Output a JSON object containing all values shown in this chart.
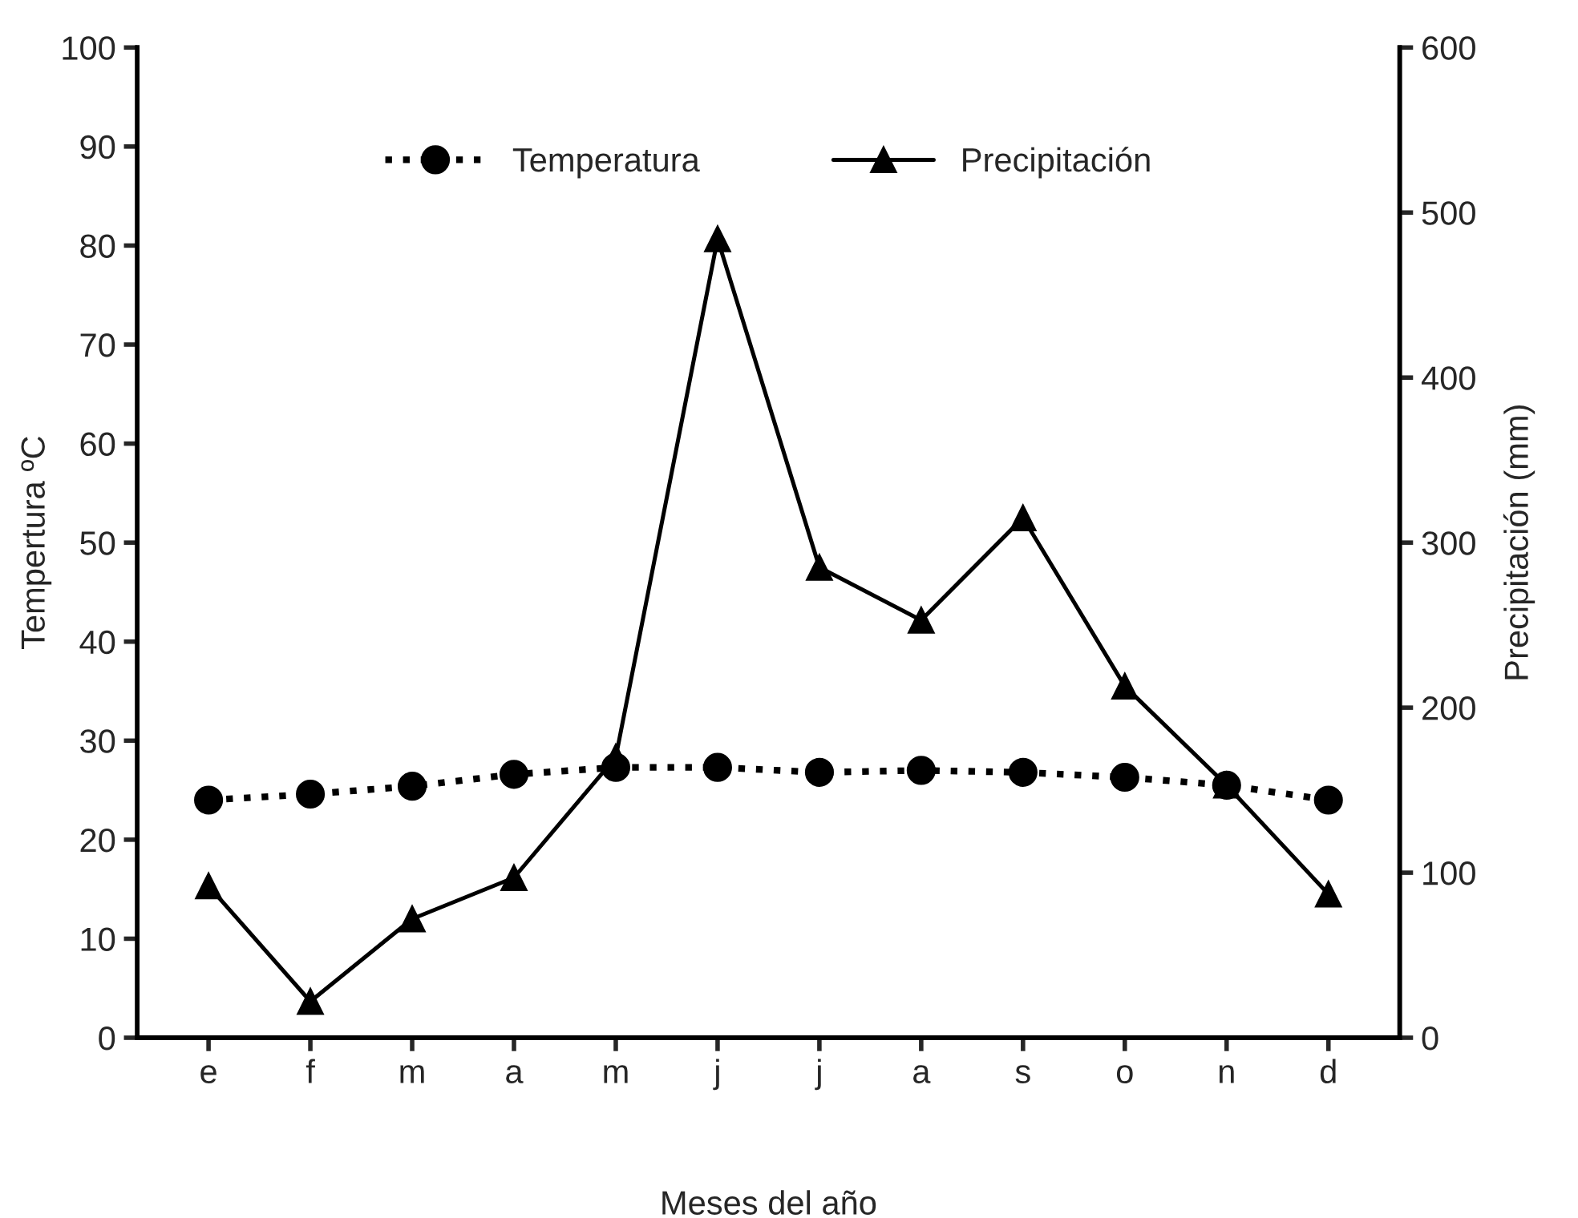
{
  "chart_data": {
    "type": "line",
    "xlabel": "Meses del año",
    "ylabel": "Tempertura ºC",
    "y2label": "Precipitación (mm)",
    "categories": [
      "e",
      "f",
      "m",
      "a",
      "m",
      "j",
      "j",
      "a",
      "s",
      "o",
      "n",
      "d"
    ],
    "series": [
      {
        "name": "Temperatura",
        "color": "#000000",
        "marker": "circle",
        "line_style": "dotted",
        "values": [
          24.0,
          24.6,
          25.4,
          26.6,
          27.3,
          27.3,
          26.8,
          27.0,
          26.8,
          26.3,
          25.5,
          24.0
        ]
      },
      {
        "name": "Precipitación",
        "color": "#000000",
        "marker": "triangle",
        "line_style": "solid",
        "axis": "y2",
        "values": [
          92,
          22,
          72,
          97,
          170,
          484,
          285,
          253,
          315,
          213,
          153,
          87
        ]
      }
    ],
    "ylim": [
      0,
      100
    ],
    "yticks": [
      0,
      10,
      20,
      30,
      40,
      50,
      60,
      70,
      80,
      90,
      100
    ],
    "y2lim": [
      0,
      600
    ],
    "y2ticks": [
      0,
      100,
      200,
      300,
      400,
      500,
      600
    ],
    "legend": "top",
    "grid": false
  }
}
